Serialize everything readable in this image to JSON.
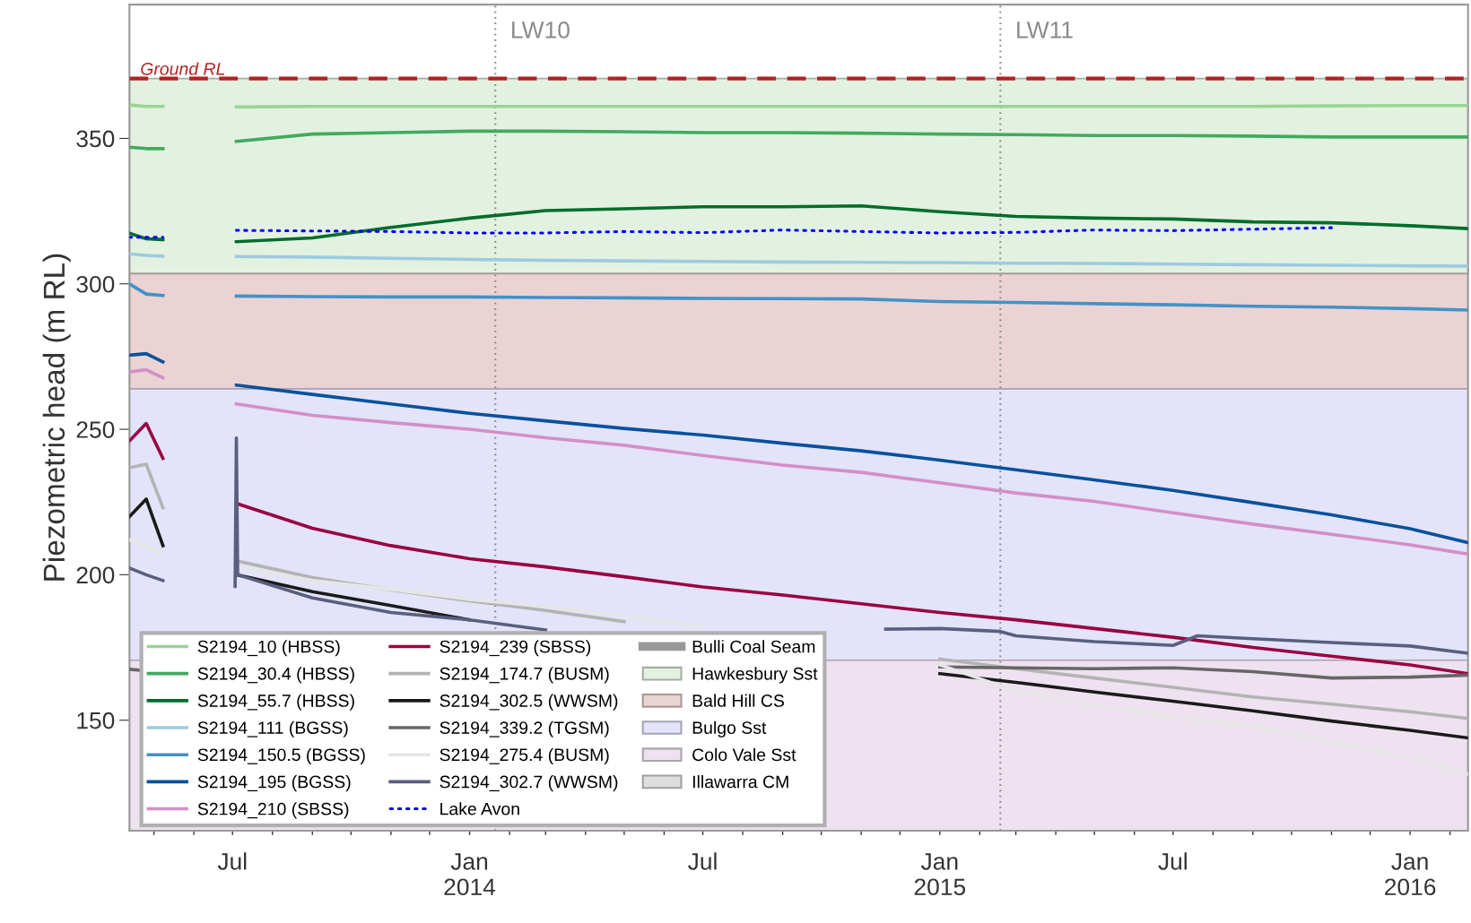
{
  "chart_data": {
    "type": "line",
    "ylabel": "Piezometric head (m RL)",
    "x": [
      "2013-04-12",
      "2013-04-25",
      "2013-05-08",
      "2013-06-01",
      "2013-07-04",
      "2013-09-01",
      "2013-11-01",
      "2014-01-01",
      "2014-03-01",
      "2014-05-01",
      "2014-07-01",
      "2014-09-01",
      "2014-11-01",
      "2015-01-01",
      "2015-03-01",
      "2015-05-01",
      "2015-07-01",
      "2015-09-01",
      "2015-11-01",
      "2016-01-01",
      "2016-02-15"
    ],
    "xlim": [
      "2013-04-12",
      "2016-02-15"
    ],
    "xticks": [
      {
        "value": "2013-05-01",
        "label": null
      },
      {
        "value": "2013-06-01",
        "label": null
      },
      {
        "value": "2013-07-01",
        "label": "Jul"
      },
      {
        "value": "2013-08-01",
        "label": null
      },
      {
        "value": "2013-09-01",
        "label": null
      },
      {
        "value": "2013-10-01",
        "label": null
      },
      {
        "value": "2013-11-01",
        "label": null
      },
      {
        "value": "2013-12-01",
        "label": null
      },
      {
        "value": "2014-01-01",
        "label": "Jan\n2014"
      },
      {
        "value": "2014-02-01",
        "label": null
      },
      {
        "value": "2014-03-01",
        "label": null
      },
      {
        "value": "2014-04-01",
        "label": null
      },
      {
        "value": "2014-05-01",
        "label": null
      },
      {
        "value": "2014-06-01",
        "label": null
      },
      {
        "value": "2014-07-01",
        "label": "Jul"
      },
      {
        "value": "2014-08-01",
        "label": null
      },
      {
        "value": "2014-09-01",
        "label": null
      },
      {
        "value": "2014-10-01",
        "label": null
      },
      {
        "value": "2014-11-01",
        "label": null
      },
      {
        "value": "2014-12-01",
        "label": null
      },
      {
        "value": "2015-01-01",
        "label": "Jan\n2015"
      },
      {
        "value": "2015-02-01",
        "label": null
      },
      {
        "value": "2015-03-01",
        "label": null
      },
      {
        "value": "2015-04-01",
        "label": null
      },
      {
        "value": "2015-05-01",
        "label": null
      },
      {
        "value": "2015-06-01",
        "label": null
      },
      {
        "value": "2015-07-01",
        "label": "Jul"
      },
      {
        "value": "2015-08-01",
        "label": null
      },
      {
        "value": "2015-09-01",
        "label": null
      },
      {
        "value": "2015-10-01",
        "label": null
      },
      {
        "value": "2015-11-01",
        "label": null
      },
      {
        "value": "2015-12-01",
        "label": null
      },
      {
        "value": "2016-01-01",
        "label": "Jan\n2016"
      },
      {
        "value": "2016-02-01",
        "label": null
      }
    ],
    "ylim": [
      112,
      396
    ],
    "yticks": [
      150,
      200,
      250,
      300,
      350
    ],
    "grid": false,
    "legend": "bottom left",
    "series": [
      {
        "name": "S2194_10 (HBSS)",
        "color": "#98d594",
        "values": [
          361.5,
          361,
          361,
          null,
          360.8,
          361,
          361,
          361,
          361,
          361,
          361,
          361,
          361,
          361,
          361,
          361,
          361,
          361,
          361.2,
          361.3,
          361.3
        ]
      },
      {
        "name": "S2194_30.4 (HBSS)",
        "color": "#41ab5d",
        "values": [
          347,
          346.5,
          346.5,
          null,
          349,
          351.5,
          352,
          352.5,
          352.5,
          352.3,
          352,
          352,
          351.8,
          351.5,
          351.3,
          351,
          351,
          350.8,
          350.5,
          350.5,
          350.5
        ]
      },
      {
        "name": "S2194_55.7 (HBSS)",
        "color": "#006d2c",
        "values": [
          317.4,
          315.5,
          315.2,
          null,
          314.5,
          315.8,
          319.4,
          322.6,
          325.2,
          325.8,
          326.5,
          326.5,
          326.8,
          324.8,
          323.2,
          322.6,
          322.3,
          321.3,
          321,
          320,
          319
        ]
      },
      {
        "name": "S2194_111 (BGSS)",
        "color": "#9ecae1",
        "values": [
          310.3,
          309.8,
          309.5,
          null,
          309.4,
          309.2,
          308.8,
          308.4,
          308.1,
          307.9,
          307.7,
          307.5,
          307.4,
          307.3,
          307.1,
          307,
          306.8,
          306.6,
          306.4,
          306.2,
          306.1
        ]
      },
      {
        "name": "S2194_150.5 (BGSS)",
        "color": "#4292c6",
        "values": [
          300,
          296.5,
          296,
          null,
          295.8,
          295.6,
          295.5,
          295.5,
          295.3,
          295.2,
          295,
          294.9,
          294.8,
          293.9,
          293.6,
          293.2,
          292.8,
          292.3,
          292,
          291.5,
          291
        ]
      },
      {
        "name": "S2194_195 (BGSS)",
        "color": "#08519c",
        "values": [
          275.5,
          276,
          273.2,
          null,
          265.2,
          262,
          258.7,
          255.5,
          252.9,
          250.3,
          248,
          245.2,
          242.6,
          239.4,
          236.1,
          232.6,
          229,
          224.8,
          220.6,
          215.8,
          211
        ]
      },
      {
        "name": "S2194_210 (SBSS)",
        "color": "#d48ec8",
        "values": [
          269.7,
          270.5,
          267.7,
          null,
          258.7,
          254.8,
          252.3,
          250,
          247.1,
          244.5,
          241,
          237.7,
          235.2,
          231.6,
          228.1,
          225.2,
          221.3,
          217.4,
          213.9,
          210.3,
          207.1
        ]
      },
      {
        "name": "S2194_239 (SBSS)",
        "color": "#990040",
        "values": [
          246,
          252,
          240,
          null,
          224.5,
          216,
          210,
          205.5,
          202.7,
          199.3,
          195.8,
          193,
          190,
          187,
          184.5,
          181.5,
          178.5,
          175,
          172,
          169,
          166
        ]
      },
      {
        "name": "S2194_174.7 (BUSM)",
        "color": "#b3b3b3",
        "values": [
          236.8,
          238,
          223,
          null,
          204.8,
          199,
          194.8,
          191,
          187.7,
          183.9,
          null,
          null,
          null,
          171,
          167.7,
          164.5,
          161.3,
          158,
          155.5,
          152.9,
          150.6
        ]
      },
      {
        "name": "S2194_302.5 (WWSM)",
        "color": "#1a1a1a",
        "values": [
          220,
          226,
          210,
          null,
          200,
          194.2,
          189.4,
          184.5,
          null,
          null,
          null,
          null,
          null,
          166,
          163,
          159.7,
          156.5,
          153.2,
          149.7,
          146.5,
          143.9
        ]
      },
      {
        "name": "S2194_339.2 (TGSM)",
        "color": "#666666",
        "values": [
          167.5,
          167,
          null,
          null,
          null,
          null,
          null,
          null,
          null,
          null,
          null,
          null,
          null,
          168.3,
          168,
          167.7,
          168,
          166.7,
          164.5,
          164.8,
          165.5
        ]
      },
      {
        "name": "S2194_275.4 (BUSM)",
        "color": "#e6e6e6",
        "values": [
          212,
          210,
          207,
          null,
          203,
          198,
          195,
          191.5,
          189,
          186,
          182,
          null,
          null,
          169,
          160,
          155,
          151,
          148,
          142.5,
          137,
          131.5
        ]
      },
      {
        "name": "S2194_302.7 (WWSM)",
        "color": "#5a5f7f",
        "x": [
          "2013-04-12",
          "2013-04-25",
          "2013-05-08",
          "2013-06-01",
          "2013-07-03",
          "2013-07-04",
          "2013-07-05",
          "2013-09-01",
          "2013-11-01",
          "2014-01-01",
          "2014-03-01",
          "2014-05-01",
          "2014-11-20",
          "2015-01-01",
          "2015-02-17",
          "2015-03-01",
          "2015-05-01",
          "2015-07-01",
          "2015-07-20",
          "2015-09-01",
          "2015-11-01",
          "2016-01-01",
          "2016-02-15"
        ],
        "values": [
          202.3,
          200,
          198,
          null,
          196,
          247,
          200,
          192,
          187,
          184.5,
          181,
          null,
          181.3,
          181.5,
          180.5,
          179,
          177,
          175.7,
          179,
          178,
          176.7,
          175.5,
          173
        ]
      },
      {
        "name": "Lake Avon",
        "color": "#0000ff",
        "line_style": "dotted",
        "values": [
          316,
          316,
          316,
          null,
          318.4,
          318.2,
          318,
          317.5,
          317.5,
          318,
          317.6,
          318.5,
          318,
          317.5,
          317.7,
          318.5,
          318.3,
          318.8,
          319.3,
          null,
          null
        ]
      },
      {
        "name": "Bulli Coal Seam",
        "color": "#999999",
        "values": [
          null,
          null,
          null,
          null,
          null,
          null,
          null,
          null,
          null,
          null,
          null,
          null,
          null,
          null,
          null,
          null,
          null,
          null,
          null,
          null,
          null
        ]
      },
      {
        "name": "Illawarra CM",
        "type": "area",
        "color": "#dedede",
        "values": [
          null,
          null,
          null,
          null,
          null,
          null,
          null,
          null,
          null,
          null,
          null,
          null,
          null,
          null,
          null,
          null,
          null,
          null,
          null,
          null,
          null
        ]
      }
    ],
    "bands": [
      {
        "axis": "y",
        "from": 303.5,
        "to": 370.6,
        "label": "Hawkesbury Sst",
        "color": "#e3f1e1"
      },
      {
        "axis": "y",
        "from": 263.9,
        "to": 303.5,
        "label": "Bald Hill CS",
        "color": "#ebd3d3"
      },
      {
        "axis": "y",
        "from": 170.6,
        "to": 263.9,
        "label": "Bulgo Sst",
        "color": "#e3e3fa"
      },
      {
        "axis": "y",
        "from": 112,
        "to": 170.6,
        "label": "Colo Vale Sst",
        "color": "#efe2f0"
      }
    ],
    "ref_lines": [
      {
        "axis": "y",
        "value": 370.6,
        "label": "Ground RL",
        "color": "#b22222",
        "line_style": "dashed"
      },
      {
        "axis": "x",
        "value": "2014-01-21",
        "label": "LW10",
        "color": "#888888",
        "line_style": "dotted"
      },
      {
        "axis": "x",
        "value": "2015-02-17",
        "label": "LW11",
        "color": "#888888",
        "line_style": "dotted"
      }
    ]
  }
}
